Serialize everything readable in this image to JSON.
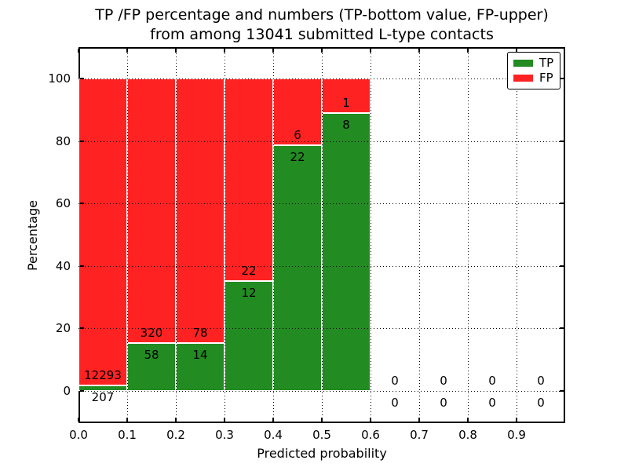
{
  "figure": {
    "title_line1": "TP /FP percentage and numbers (TP-bottom value, FP-upper)",
    "title_line2": "from among 13041 submitted L-type contacts",
    "xlabel": "Predicted probability",
    "ylabel": "Percentage"
  },
  "legend": {
    "items": [
      {
        "name": "legend-swatch-tp",
        "label": "TP",
        "color": "#228b22"
      },
      {
        "name": "legend-swatch-fp",
        "label": "FP",
        "color": "#ff2222"
      }
    ]
  },
  "chart_data": {
    "type": "bar",
    "stacked": true,
    "title": "TP /FP percentage and numbers (TP-bottom value, FP-upper) from among 13041 submitted L-type contacts",
    "xlabel": "Predicted probability",
    "ylabel": "Percentage",
    "total_submitted": 13041,
    "contact_type": "L-type",
    "xlim": [
      0.0,
      1.0
    ],
    "ylim": [
      -10,
      109
    ],
    "grid": true,
    "grid_style": "dotted",
    "legend_position": "upper right",
    "xticks": [
      0.0,
      0.1,
      0.2,
      0.3,
      0.4,
      0.5,
      0.6,
      0.7,
      0.8,
      0.9
    ],
    "xtick_labels": [
      "0.0",
      "0.1",
      "0.2",
      "0.3",
      "0.4",
      "0.5",
      "0.6",
      "0.7",
      "0.8",
      "0.9"
    ],
    "yticks": [
      0,
      20,
      40,
      60,
      80,
      100
    ],
    "ytick_labels": [
      "0",
      "20",
      "40",
      "60",
      "80",
      "100"
    ],
    "series": [
      {
        "name": "TP",
        "color": "#228b22"
      },
      {
        "name": "FP",
        "color": "#ff2222"
      }
    ],
    "bins": [
      {
        "x_start": 0.0,
        "x_end": 0.1,
        "tp_count": 207,
        "fp_count": 12293,
        "tp_pct": 1.66,
        "fp_pct": 98.34
      },
      {
        "x_start": 0.1,
        "x_end": 0.2,
        "tp_count": 58,
        "fp_count": 320,
        "tp_pct": 15.34,
        "fp_pct": 84.66
      },
      {
        "x_start": 0.2,
        "x_end": 0.3,
        "tp_count": 14,
        "fp_count": 78,
        "tp_pct": 15.22,
        "fp_pct": 84.78
      },
      {
        "x_start": 0.3,
        "x_end": 0.4,
        "tp_count": 12,
        "fp_count": 22,
        "tp_pct": 35.29,
        "fp_pct": 64.71
      },
      {
        "x_start": 0.4,
        "x_end": 0.5,
        "tp_count": 22,
        "fp_count": 6,
        "tp_pct": 78.57,
        "fp_pct": 21.43
      },
      {
        "x_start": 0.5,
        "x_end": 0.6,
        "tp_count": 8,
        "fp_count": 1,
        "tp_pct": 88.89,
        "fp_pct": 11.11
      },
      {
        "x_start": 0.6,
        "x_end": 0.7,
        "tp_count": 0,
        "fp_count": 0,
        "tp_pct": 0,
        "fp_pct": 0
      },
      {
        "x_start": 0.7,
        "x_end": 0.8,
        "tp_count": 0,
        "fp_count": 0,
        "tp_pct": 0,
        "fp_pct": 0
      },
      {
        "x_start": 0.8,
        "x_end": 0.9,
        "tp_count": 0,
        "fp_count": 0,
        "tp_pct": 0,
        "fp_pct": 0
      },
      {
        "x_start": 0.9,
        "x_end": 1.0,
        "tp_count": 0,
        "fp_count": 0,
        "tp_pct": 0,
        "fp_pct": 0
      }
    ]
  }
}
